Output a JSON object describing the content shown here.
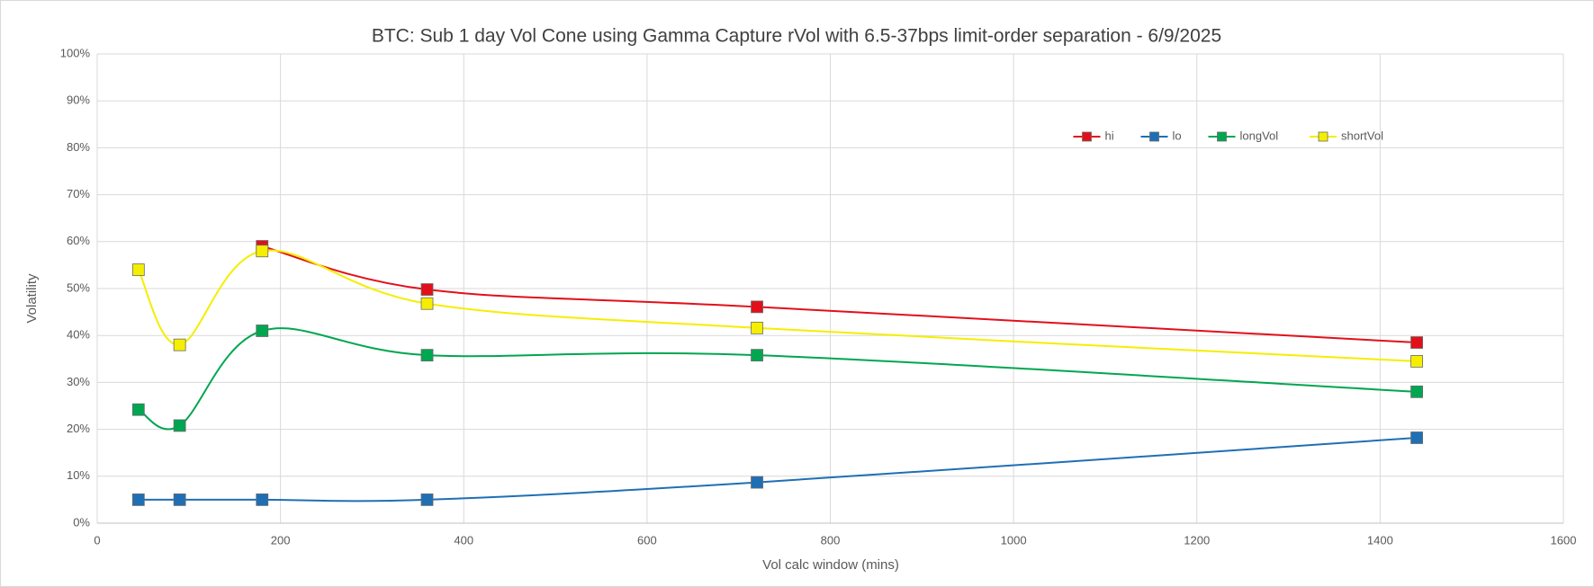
{
  "chart_data": {
    "type": "scatter",
    "title": "BTC: Sub 1 day Vol Cone using Gamma Capture rVol with 6.5-37bps limit-order separation - 6/9/2025",
    "x_label": "Vol calc window (mins)",
    "y_label": "Volatility",
    "x": [
      45,
      90,
      180,
      360,
      720,
      1440
    ],
    "series": [
      {
        "name": "hi",
        "color": "#e2101b",
        "values": [
          null,
          null,
          59,
          49.8,
          46.1,
          38.5
        ]
      },
      {
        "name": "lo",
        "color": "#1f6fb5",
        "values": [
          5,
          5,
          5,
          5,
          8.7,
          18.2
        ]
      },
      {
        "name": "longVol",
        "color": "#00a650",
        "values": [
          24.2,
          20.8,
          41,
          35.8,
          35.8,
          28
        ]
      },
      {
        "name": "shortVol",
        "color": "#f5ee00",
        "values": [
          54,
          38,
          58,
          46.8,
          41.6,
          34.5
        ]
      }
    ],
    "xlim": [
      0,
      1600
    ],
    "xticks": [
      0,
      200,
      400,
      600,
      800,
      1000,
      1200,
      1400,
      1600
    ],
    "ylim": [
      0,
      100
    ],
    "yticks": [
      {
        "value": 0,
        "label": "0%"
      },
      {
        "value": 10,
        "label": "10%"
      },
      {
        "value": 20,
        "label": "20%"
      },
      {
        "value": 30,
        "label": "30%"
      },
      {
        "value": 40,
        "label": "40%"
      },
      {
        "value": 50,
        "label": "50%"
      },
      {
        "value": 60,
        "label": "60%"
      },
      {
        "value": 70,
        "label": "70%"
      },
      {
        "value": 80,
        "label": "80%"
      },
      {
        "value": 90,
        "label": "90%"
      },
      {
        "value": 100,
        "label": "100%"
      }
    ],
    "grid": true,
    "smooth": true,
    "legend": "top-right"
  }
}
